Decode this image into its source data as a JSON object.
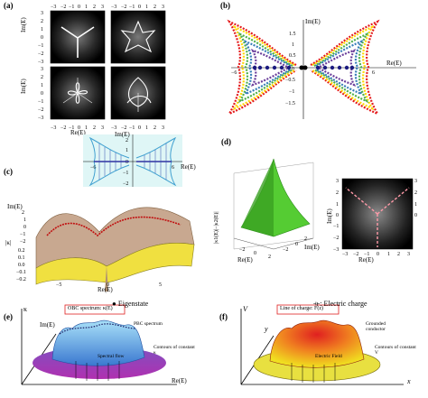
{
  "panels": {
    "a": {
      "label": "(a)",
      "xlabel": "Re(E)",
      "ylabel": "Im(E)",
      "ticks": [
        "−3",
        "−2",
        "−1",
        "0",
        "1",
        "2",
        "3"
      ]
    },
    "b": {
      "label": "(b)",
      "ylabel": "Im(E)",
      "xlabel": "Re(E)",
      "yticks": [
        "1.5",
        "1",
        "0.5",
        "0",
        "−0.5",
        "−1",
        "−1.5"
      ],
      "xticks": [
        "−6",
        "6"
      ]
    },
    "c": {
      "label": "(c)",
      "top_ylabel": "Im(E)",
      "top_xlabel": "Re(E)",
      "top_yticks": [
        "2",
        "1",
        "0",
        "−1",
        "−2"
      ],
      "top_xticks": [
        "−6",
        "6"
      ],
      "bottom_ylabel": "Im(E)",
      "bottom_zlabel": "|κ|",
      "bottom_xlabel": "Re(E)",
      "bottom_yticks": [
        "2",
        "1",
        "0",
        "−1",
        "−2"
      ],
      "bottom_zticks": [
        "0.2",
        "0.1",
        "0.0",
        "−0.1",
        "−0.2"
      ],
      "bottom_xticks": [
        "−5",
        "0",
        "5"
      ]
    },
    "d": {
      "label": "(d)",
      "zlabel": "|κ1(E)|−|κ2(E)|",
      "xlabel": "Re(E)",
      "ylabel": "Im(E)",
      "ticks": [
        "−2",
        "0",
        "2"
      ],
      "right_ylabel": "Im(E)",
      "right_xlabel": "Re(E)",
      "right_ticks": [
        "3",
        "2",
        "1",
        "0",
        "−1",
        "−2",
        "−3"
      ],
      "right_xticks": [
        "−3",
        "−2",
        "−1",
        "0",
        "1",
        "2",
        "3"
      ]
    },
    "e": {
      "label": "(e)",
      "legend": "Eigenstate",
      "obc": "OBC spectrum: κ(E)",
      "pbc": "PBC spectrum",
      "contours": "Contours of constant κ",
      "flow": "Spectral flow",
      "kappa": "κ",
      "im": "Im(E)",
      "re": "Re(E)"
    },
    "f": {
      "label": "(f)",
      "legend": "Electric charge",
      "line": "Line of charge: F(z)",
      "grounded": "Grounded conductor",
      "contours": "Contours of constant V",
      "field": "Electric Field",
      "V": "V",
      "y": "y",
      "x": "x"
    }
  },
  "colors": {
    "rainbow": [
      "#e41a1c",
      "#ff7f00",
      "#ffd700",
      "#4daf4a",
      "#377eb8",
      "#6a3d9a",
      "#984ea3"
    ],
    "cyan": "#40c0d0",
    "purple": "#7020a0",
    "yellow": "#e8d84a",
    "green": "#4cc24c"
  }
}
